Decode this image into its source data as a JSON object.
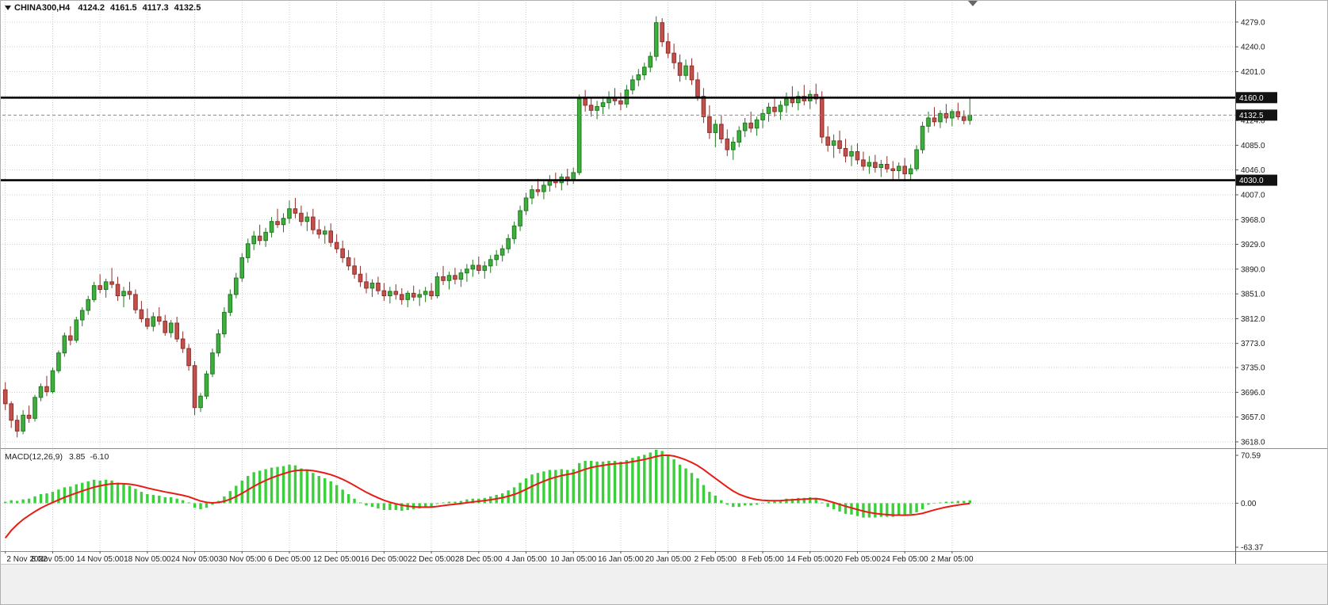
{
  "header": {
    "symbol_period": "CHINA300,H4",
    "open": "4124.2",
    "high": "4161.5",
    "low": "4117.3",
    "close": "4132.5"
  },
  "indicator_header": {
    "label": "MACD(12,26,9)",
    "main_value": "3.85",
    "signal_value": "-6.10"
  },
  "chart_data": {
    "type": "candlestick",
    "symbol": "CHINA300",
    "timeframe": "H4",
    "last_bar": {
      "open": 4124.2,
      "high": 4161.5,
      "low": 4117.3,
      "close": 4132.5
    },
    "price_range": [
      3608,
      4310
    ],
    "price_axis": {
      "labels": [
        4279,
        4240,
        4201,
        4124,
        4085,
        4046,
        4007,
        3968,
        3929,
        3890,
        3851,
        3812,
        3773,
        3735,
        3696,
        3657,
        3618
      ],
      "hidden_gridlines": [
        4163
      ]
    },
    "levels": [
      {
        "price": 4160.0,
        "label": "4160.0"
      },
      {
        "price": 4030.0,
        "label": "4030.0"
      }
    ],
    "bid": {
      "price": 4132.5,
      "label": "4132.5"
    },
    "time_labels": [
      {
        "text": "2 Nov 2022",
        "index": 0
      },
      {
        "text": "8 Nov 05:00",
        "index": 8
      },
      {
        "text": "14 Nov 05:00",
        "index": 16
      },
      {
        "text": "18 Nov 05:00",
        "index": 24
      },
      {
        "text": "24 Nov 05:00",
        "index": 32
      },
      {
        "text": "30 Nov 05:00",
        "index": 40
      },
      {
        "text": "6 Dec 05:00",
        "index": 48
      },
      {
        "text": "12 Dec 05:00",
        "index": 56
      },
      {
        "text": "16 Dec 05:00",
        "index": 64
      },
      {
        "text": "22 Dec 05:00",
        "index": 72
      },
      {
        "text": "28 Dec 05:00",
        "index": 80
      },
      {
        "text": "4 Jan 05:00",
        "index": 88
      },
      {
        "text": "10 Jan 05:00",
        "index": 96
      },
      {
        "text": "16 Jan 05:00",
        "index": 104
      },
      {
        "text": "20 Jan 05:00",
        "index": 112
      },
      {
        "text": "2 Feb 05:00",
        "index": 120
      },
      {
        "text": "8 Feb 05:00",
        "index": 128
      },
      {
        "text": "14 Feb 05:00",
        "index": 136
      },
      {
        "text": "20 Feb 05:00",
        "index": 144
      },
      {
        "text": "24 Feb 05:00",
        "index": 152
      },
      {
        "text": "2 Mar 05:00",
        "index": 160
      }
    ],
    "candles": [
      [
        3700,
        3712,
        3668,
        3678
      ],
      [
        3678,
        3682,
        3640,
        3652
      ],
      [
        3652,
        3660,
        3625,
        3635
      ],
      [
        3635,
        3668,
        3630,
        3660
      ],
      [
        3660,
        3675,
        3648,
        3655
      ],
      [
        3655,
        3692,
        3650,
        3688
      ],
      [
        3688,
        3710,
        3682,
        3705
      ],
      [
        3705,
        3722,
        3690,
        3697
      ],
      [
        3697,
        3735,
        3694,
        3730
      ],
      [
        3730,
        3762,
        3726,
        3758
      ],
      [
        3758,
        3790,
        3752,
        3785
      ],
      [
        3785,
        3800,
        3770,
        3778
      ],
      [
        3778,
        3815,
        3774,
        3810
      ],
      [
        3810,
        3830,
        3800,
        3825
      ],
      [
        3825,
        3848,
        3818,
        3842
      ],
      [
        3842,
        3870,
        3838,
        3864
      ],
      [
        3864,
        3882,
        3852,
        3858
      ],
      [
        3858,
        3875,
        3845,
        3870
      ],
      [
        3870,
        3892,
        3860,
        3866
      ],
      [
        3866,
        3878,
        3840,
        3848
      ],
      [
        3848,
        3862,
        3830,
        3855
      ],
      [
        3855,
        3870,
        3842,
        3850
      ],
      [
        3850,
        3858,
        3820,
        3826
      ],
      [
        3826,
        3840,
        3806,
        3812
      ],
      [
        3812,
        3828,
        3795,
        3800
      ],
      [
        3800,
        3822,
        3792,
        3815
      ],
      [
        3815,
        3830,
        3802,
        3808
      ],
      [
        3808,
        3818,
        3785,
        3790
      ],
      [
        3790,
        3810,
        3782,
        3805
      ],
      [
        3805,
        3815,
        3775,
        3780
      ],
      [
        3780,
        3792,
        3758,
        3765
      ],
      [
        3765,
        3772,
        3730,
        3738
      ],
      [
        3738,
        3745,
        3660,
        3672
      ],
      [
        3672,
        3695,
        3665,
        3690
      ],
      [
        3690,
        3730,
        3685,
        3725
      ],
      [
        3725,
        3765,
        3720,
        3758
      ],
      [
        3758,
        3795,
        3752,
        3788
      ],
      [
        3788,
        3830,
        3782,
        3822
      ],
      [
        3822,
        3858,
        3816,
        3850
      ],
      [
        3850,
        3884,
        3844,
        3876
      ],
      [
        3876,
        3915,
        3870,
        3908
      ],
      [
        3908,
        3938,
        3900,
        3930
      ],
      [
        3930,
        3950,
        3920,
        3942
      ],
      [
        3942,
        3960,
        3928,
        3935
      ],
      [
        3935,
        3955,
        3925,
        3948
      ],
      [
        3948,
        3972,
        3940,
        3965
      ],
      [
        3965,
        3985,
        3955,
        3960
      ],
      [
        3960,
        3978,
        3948,
        3970
      ],
      [
        3970,
        3998,
        3962,
        3985
      ],
      [
        3985,
        4002,
        3970,
        3978
      ],
      [
        3978,
        3990,
        3958,
        3965
      ],
      [
        3965,
        3980,
        3950,
        3972
      ],
      [
        3972,
        3985,
        3945,
        3952
      ],
      [
        3952,
        3968,
        3938,
        3945
      ],
      [
        3945,
        3958,
        3930,
        3950
      ],
      [
        3950,
        3962,
        3925,
        3932
      ],
      [
        3932,
        3945,
        3915,
        3922
      ],
      [
        3922,
        3935,
        3900,
        3908
      ],
      [
        3908,
        3920,
        3888,
        3895
      ],
      [
        3895,
        3908,
        3875,
        3882
      ],
      [
        3882,
        3895,
        3862,
        3870
      ],
      [
        3870,
        3884,
        3852,
        3860
      ],
      [
        3860,
        3874,
        3846,
        3868
      ],
      [
        3868,
        3878,
        3850,
        3856
      ],
      [
        3856,
        3868,
        3840,
        3848
      ],
      [
        3848,
        3862,
        3836,
        3855
      ],
      [
        3855,
        3866,
        3842,
        3850
      ],
      [
        3850,
        3860,
        3834,
        3842
      ],
      [
        3842,
        3856,
        3830,
        3852
      ],
      [
        3852,
        3864,
        3840,
        3846
      ],
      [
        3846,
        3858,
        3832,
        3850
      ],
      [
        3850,
        3862,
        3838,
        3855
      ],
      [
        3855,
        3868,
        3842,
        3848
      ],
      [
        3848,
        3885,
        3844,
        3878
      ],
      [
        3878,
        3895,
        3865,
        3872
      ],
      [
        3872,
        3886,
        3858,
        3880
      ],
      [
        3880,
        3892,
        3866,
        3874
      ],
      [
        3874,
        3890,
        3862,
        3884
      ],
      [
        3884,
        3898,
        3870,
        3890
      ],
      [
        3890,
        3905,
        3878,
        3896
      ],
      [
        3896,
        3910,
        3882,
        3888
      ],
      [
        3888,
        3902,
        3875,
        3895
      ],
      [
        3895,
        3912,
        3884,
        3905
      ],
      [
        3905,
        3920,
        3895,
        3912
      ],
      [
        3912,
        3928,
        3902,
        3922
      ],
      [
        3922,
        3945,
        3915,
        3938
      ],
      [
        3938,
        3965,
        3930,
        3958
      ],
      [
        3958,
        3990,
        3950,
        3982
      ],
      [
        3982,
        4010,
        3975,
        4002
      ],
      [
        4002,
        4022,
        3992,
        4015
      ],
      [
        4015,
        4032,
        4005,
        4012
      ],
      [
        4012,
        4028,
        4000,
        4022
      ],
      [
        4022,
        4038,
        4012,
        4030
      ],
      [
        4030,
        4042,
        4018,
        4026
      ],
      [
        4026,
        4040,
        4014,
        4035
      ],
      [
        4035,
        4048,
        4022,
        4030
      ],
      [
        4030,
        4050,
        4024,
        4042
      ],
      [
        4042,
        4165,
        4038,
        4158
      ],
      [
        4158,
        4172,
        4138,
        4148
      ],
      [
        4148,
        4160,
        4130,
        4140
      ],
      [
        4140,
        4155,
        4126,
        4146
      ],
      [
        4146,
        4162,
        4134,
        4152
      ],
      [
        4152,
        4170,
        4142,
        4160
      ],
      [
        4160,
        4175,
        4148,
        4155
      ],
      [
        4155,
        4168,
        4140,
        4150
      ],
      [
        4150,
        4180,
        4144,
        4172
      ],
      [
        4172,
        4195,
        4165,
        4188
      ],
      [
        4188,
        4205,
        4178,
        4196
      ],
      [
        4196,
        4215,
        4188,
        4208
      ],
      [
        4208,
        4232,
        4200,
        4225
      ],
      [
        4225,
        4288,
        4218,
        4278
      ],
      [
        4278,
        4285,
        4240,
        4248
      ],
      [
        4248,
        4262,
        4222,
        4230
      ],
      [
        4230,
        4245,
        4205,
        4215
      ],
      [
        4215,
        4228,
        4185,
        4195
      ],
      [
        4195,
        4220,
        4188,
        4210
      ],
      [
        4210,
        4222,
        4180,
        4188
      ],
      [
        4188,
        4200,
        4155,
        4162
      ],
      [
        4162,
        4175,
        4120,
        4130
      ],
      [
        4130,
        4148,
        4095,
        4105
      ],
      [
        4105,
        4125,
        4082,
        4118
      ],
      [
        4118,
        4132,
        4088,
        4095
      ],
      [
        4095,
        4110,
        4068,
        4078
      ],
      [
        4078,
        4098,
        4062,
        4090
      ],
      [
        4090,
        4115,
        4082,
        4108
      ],
      [
        4108,
        4128,
        4098,
        4120
      ],
      [
        4120,
        4138,
        4105,
        4112
      ],
      [
        4112,
        4130,
        4100,
        4125
      ],
      [
        4125,
        4142,
        4112,
        4135
      ],
      [
        4135,
        4152,
        4122,
        4145
      ],
      [
        4145,
        4160,
        4130,
        4138
      ],
      [
        4138,
        4155,
        4125,
        4148
      ],
      [
        4148,
        4168,
        4136,
        4158
      ],
      [
        4158,
        4178,
        4145,
        4152
      ],
      [
        4152,
        4170,
        4140,
        4162
      ],
      [
        4162,
        4180,
        4148,
        4155
      ],
      [
        4155,
        4172,
        4142,
        4165
      ],
      [
        4165,
        4182,
        4150,
        4158
      ],
      [
        4158,
        4170,
        4088,
        4098
      ],
      [
        4098,
        4115,
        4075,
        4085
      ],
      [
        4085,
        4102,
        4065,
        4092
      ],
      [
        4092,
        4108,
        4072,
        4080
      ],
      [
        4080,
        4095,
        4058,
        4068
      ],
      [
        4068,
        4085,
        4052,
        4075
      ],
      [
        4075,
        4088,
        4055,
        4062
      ],
      [
        4062,
        4075,
        4045,
        4052
      ],
      [
        4052,
        4068,
        4040,
        4058
      ],
      [
        4058,
        4070,
        4042,
        4050
      ],
      [
        4050,
        4062,
        4035,
        4055
      ],
      [
        4055,
        4068,
        4042,
        4048
      ],
      [
        4048,
        4060,
        4030,
        4045
      ],
      [
        4045,
        4058,
        4032,
        4052
      ],
      [
        4052,
        4065,
        4028,
        4040
      ],
      [
        4040,
        4055,
        4030,
        4048
      ],
      [
        4048,
        4085,
        4044,
        4078
      ],
      [
        4078,
        4122,
        4072,
        4115
      ],
      [
        4115,
        4138,
        4105,
        4128
      ],
      [
        4128,
        4145,
        4115,
        4122
      ],
      [
        4122,
        4140,
        4112,
        4135
      ],
      [
        4135,
        4150,
        4120,
        4128
      ],
      [
        4128,
        4142,
        4115,
        4138
      ],
      [
        4138,
        4152,
        4125,
        4130
      ],
      [
        4130,
        4140,
        4118,
        4124
      ],
      [
        4124.2,
        4161.5,
        4117.3,
        4132.5
      ]
    ],
    "macd": {
      "name": "MACD",
      "params": [
        12,
        26,
        9
      ],
      "range": [
        -63.37,
        70.59
      ],
      "axis_labels": [
        70.59,
        0.0,
        -63.37
      ],
      "signal_seed": -58,
      "signal_period": 9,
      "histogram": [
        2,
        4,
        3,
        5,
        6,
        9,
        12,
        13,
        15,
        18,
        21,
        22,
        25,
        27,
        29,
        31,
        30,
        31,
        30,
        27,
        25,
        23,
        19,
        15,
        12,
        11,
        10,
        8,
        8,
        6,
        4,
        1,
        -6,
        -8,
        -6,
        -2,
        3,
        9,
        16,
        23,
        30,
        36,
        41,
        43,
        45,
        47,
        48,
        49,
        51,
        50,
        46,
        44,
        40,
        36,
        33,
        29,
        24,
        18,
        12,
        6,
        1,
        -3,
        -5,
        -7,
        -9,
        -9,
        -9,
        -10,
        -9,
        -8,
        -7,
        -5,
        -5,
        -1,
        1,
        2,
        2,
        3,
        5,
        6,
        6,
        7,
        9,
        11,
        13,
        17,
        21,
        27,
        33,
        38,
        40,
        42,
        44,
        44,
        45,
        44,
        45,
        53,
        56,
        56,
        55,
        55,
        56,
        56,
        55,
        57,
        60,
        62,
        64,
        67,
        70.59,
        69,
        64,
        58,
        51,
        46,
        40,
        33,
        24,
        15,
        10,
        4,
        -2,
        -5,
        -5,
        -3,
        -3,
        -2,
        0,
        2,
        3,
        4,
        6,
        6,
        7,
        7,
        8,
        7,
        1,
        -5,
        -8,
        -11,
        -14,
        -15,
        -17,
        -19,
        -19,
        -19,
        -18,
        -18,
        -18,
        -16,
        -16,
        -14,
        -12,
        -8,
        -2,
        0,
        1,
        2,
        2,
        3,
        3,
        3.85
      ]
    }
  },
  "colors": {
    "background": "#ffffff",
    "dead_zone": "#f0f0f0",
    "grid": "#cfcfcf",
    "bull": "#3fae3f",
    "bull_border": "#1e7a1e",
    "bear": "#c2504c",
    "bear_border": "#8e2f2b",
    "level_line": "#000000",
    "bid_line": "#8a8a8a",
    "macd_hist": "#3ccf3c",
    "macd_signal": "#e81c14",
    "scale_text": "#1a1a1a",
    "tag_bg": "#121212",
    "tag_text": "#ffffff",
    "separator": "#8c8c8c",
    "scale_divider": "#555555",
    "border": "#b0b0b0"
  }
}
